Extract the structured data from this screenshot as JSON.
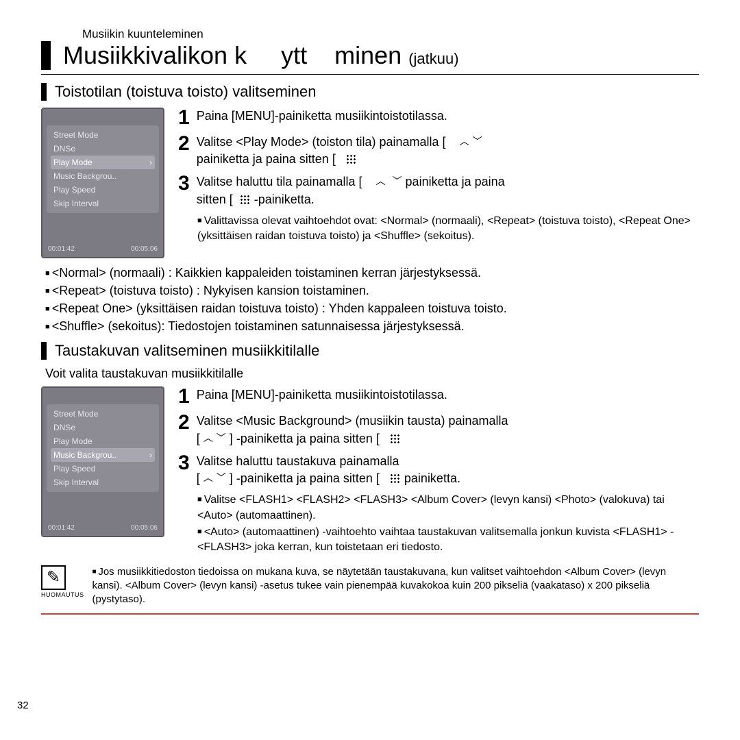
{
  "breadcrumb": "Musiikin kuunteleminen",
  "title_main": "Musiikkivalikon k",
  "title_mid": "ytt",
  "title_end": "minen",
  "title_suffix": "(jatkuu)",
  "section1": {
    "title": "Toistotilan (toistuva toisto) valitseminen",
    "device": {
      "items": [
        "Street Mode",
        "DNSe",
        "Play Mode",
        "Music Backgrou..",
        "Play Speed",
        "Skip Interval"
      ],
      "selected_index": 2,
      "t1": "00:01:42",
      "t2": "00:05:06"
    },
    "steps": {
      "s1": "Paina [MENU]-painiketta musiikintoistotilassa.",
      "s2a": "Valitse <Play Mode> (toiston tila) painamalla [",
      "s2b": "painiketta ja paina sitten [",
      "s3a": "Valitse haluttu tila painamalla [",
      "s3b": "painiketta ja paina",
      "s3c": "sitten [",
      "s3d": " -painiketta.",
      "sub1": "Valittavissa olevat vaihtoehdot ovat: <Normal> (normaali), <Repeat> (toistuva toisto), <Repeat One> (yksittäisen raidan toistuva toisto) ja <Shuffle> (sekoitus)."
    },
    "bullets": [
      "<Normal> (normaali) : Kaikkien kappaleiden toistaminen kerran järjestyksessä.",
      "<Repeat> (toistuva toisto) : Nykyisen kansion toistaminen.",
      "<Repeat One> (yksittäisen raidan toistuva toisto) : Yhden kappaleen toistuva toisto.",
      "<Shuffle> (sekoitus): Tiedostojen toistaminen satunnaisessa järjestyksessä."
    ]
  },
  "section2": {
    "title": "Taustakuvan valitseminen musiikkitilalle",
    "intro": "Voit valita taustakuvan musiikkitilalle",
    "device": {
      "items": [
        "Street Mode",
        "DNSe",
        "Play Mode",
        "Music Backgrou..",
        "Play Speed",
        "Skip Interval"
      ],
      "selected_index": 3,
      "t1": "00:01:42",
      "t2": "00:05:06"
    },
    "steps": {
      "s1": "Paina [MENU]-painiketta musiikintoistotilassa.",
      "s2a": "Valitse <Music Background> (musiikin tausta) painamalla",
      "s2b": "] -painiketta ja paina sitten [",
      "s3a": "Valitse haluttu taustakuva painamalla",
      "s3b": "] -painiketta ja paina sitten [",
      "s3c": "painiketta.",
      "sub1": "Valitse <FLASH1> <FLASH2> <FLASH3> <Album Cover> (levyn kansi) <Photo> (valokuva) tai <Auto> (automaattinen).",
      "sub2": "<Auto> (automaattinen) -vaihtoehto vaihtaa taustakuvan valitsemalla jonkun kuvista <FLASH1> - <FLASH3> joka kerran, kun toistetaan eri tiedosto."
    }
  },
  "note": {
    "label": "HUOMAUTUS",
    "text": "Jos musiikkitiedoston tiedoissa on mukana kuva, se näytetään taustakuvana, kun valitset vaihtoehdon <Album Cover> (levyn kansi). <Album Cover> (levyn kansi) -asetus tukee vain pienempää kuvakokoa kuin 200 pikseliä (vaakataso) x 200 pikseliä (pystytaso)."
  },
  "page_number": "32"
}
